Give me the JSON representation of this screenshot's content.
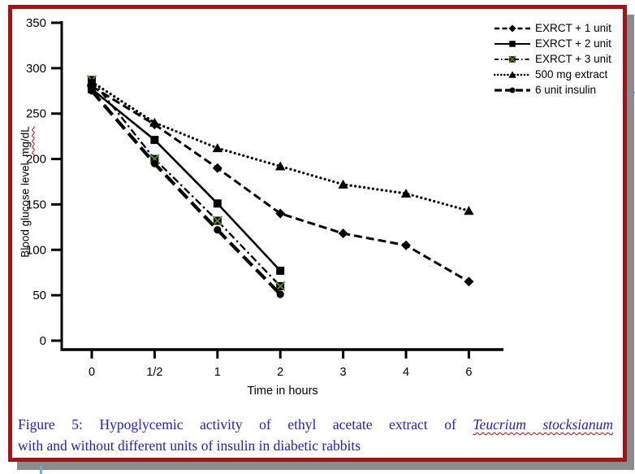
{
  "colors": {
    "border_red": "#A31515",
    "shadow_gray": "#8C8C8C",
    "caption_blue": "#2121CE",
    "squiggle_red": "#C00000",
    "marker_x_green": "#5F8F1E",
    "series_black": "#000000"
  },
  "chart_data": {
    "type": "line",
    "categories": [
      "0",
      "1/2",
      "1",
      "2",
      "3",
      "4",
      "6"
    ],
    "xlabel": "Time in hours",
    "ylabel": "Blood glucose level mg/dL",
    "ylabel_main": "Blood glucose level",
    "ylabel_unit": "mg/dL",
    "ylim": [
      0,
      350
    ],
    "yticks": [
      0,
      50,
      100,
      150,
      200,
      250,
      300,
      350
    ],
    "grid": false,
    "legend_position": "top-right",
    "series": [
      {
        "name": "EXRCT + 1 unit",
        "marker": "diamond",
        "dash": "dashed",
        "color": "#000000",
        "values": [
          280,
          238,
          190,
          140,
          118,
          105,
          65
        ]
      },
      {
        "name": "EXRCT + 2 unit",
        "marker": "square",
        "dash": "solid",
        "color": "#000000",
        "values": [
          277,
          221,
          151,
          77,
          null,
          null,
          null
        ]
      },
      {
        "name": "EXRCT + 3 unit",
        "marker": "xsquare",
        "dash": "dash-dot",
        "color": "#000000",
        "values": [
          287,
          200,
          132,
          60,
          null,
          null,
          null
        ]
      },
      {
        "name": "500 mg extract",
        "marker": "triangle",
        "dash": "dotted",
        "color": "#000000",
        "values": [
          285,
          240,
          212,
          192,
          172,
          162,
          143
        ]
      },
      {
        "name": "6 unit insulin",
        "marker": "circle",
        "dash": "long-dash",
        "color": "#000000",
        "values": [
          275,
          195,
          122,
          51,
          null,
          null,
          null
        ]
      }
    ]
  },
  "caption": {
    "line1_prefix": "Figure 5: Hypoglycemic activity of ethyl acetate extract of ",
    "line1_species": "Teucrium stocksianum",
    "line2": "with and without different units of insulin in diabetic rabbits"
  }
}
